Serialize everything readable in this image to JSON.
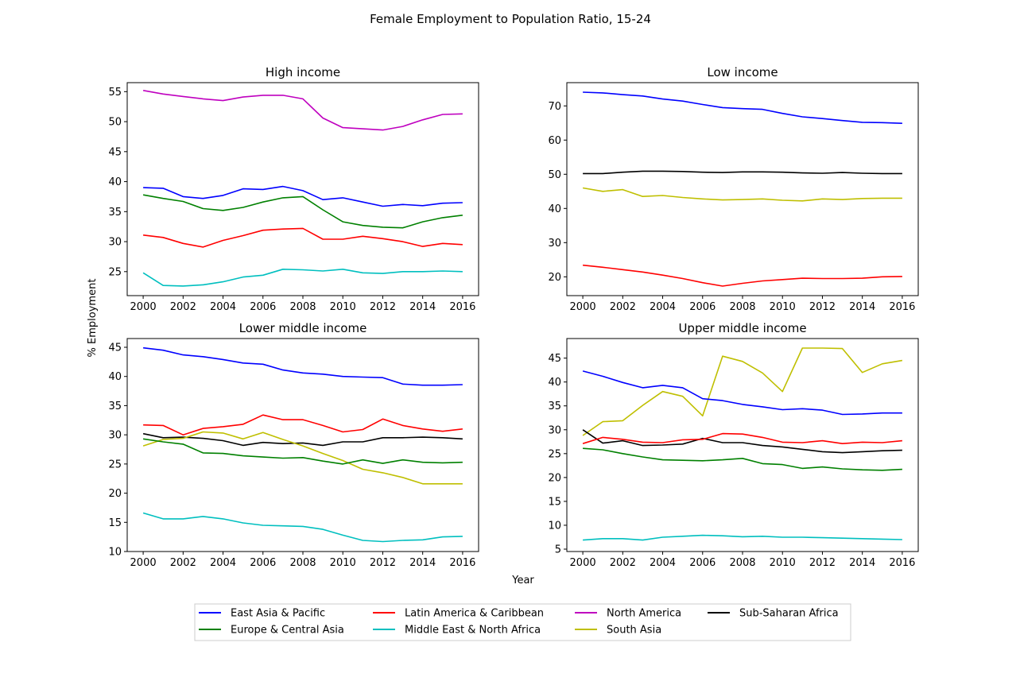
{
  "figure": {
    "title": "Female Employment to Population Ratio, 15-24",
    "ylabel": "% Employment",
    "xlabel": "Year"
  },
  "colors": {
    "East Asia & Pacific": "#0000ff",
    "Europe & Central Asia": "#008000",
    "Latin America & Caribbean": "#ff0000",
    "Middle East & North Africa": "#00bfbf",
    "North America": "#bf00bf",
    "South Asia": "#bfbf00",
    "Sub-Saharan Africa": "#000000"
  },
  "legend": {
    "placement": "bottom-center",
    "entries": [
      "East Asia & Pacific",
      "Latin America & Caribbean",
      "North America",
      "Sub-Saharan Africa",
      "Europe & Central Asia",
      "Middle East & North Africa",
      "South Asia"
    ]
  },
  "chart_data": [
    {
      "type": "line",
      "title": "High income",
      "x": [
        2000,
        2001,
        2002,
        2003,
        2004,
        2005,
        2006,
        2007,
        2008,
        2009,
        2010,
        2011,
        2012,
        2013,
        2014,
        2015,
        2016
      ],
      "xticks": [
        2000,
        2002,
        2004,
        2006,
        2008,
        2010,
        2012,
        2014,
        2016
      ],
      "ylim": [
        21,
        56.5
      ],
      "yticks": [
        25,
        30,
        35,
        40,
        45,
        50,
        55
      ],
      "series": [
        {
          "name": "North America",
          "values": [
            55.2,
            54.6,
            54.2,
            53.8,
            53.5,
            54.1,
            54.4,
            54.4,
            53.8,
            50.6,
            49.0,
            48.8,
            48.6,
            49.2,
            50.3,
            51.2,
            51.3
          ]
        },
        {
          "name": "East Asia & Pacific",
          "values": [
            39.0,
            38.9,
            37.5,
            37.2,
            37.7,
            38.8,
            38.7,
            39.2,
            38.5,
            37.0,
            37.3,
            36.6,
            35.9,
            36.2,
            36.0,
            36.4,
            36.5
          ]
        },
        {
          "name": "Europe & Central Asia",
          "values": [
            37.8,
            37.2,
            36.7,
            35.5,
            35.2,
            35.7,
            36.6,
            37.3,
            37.5,
            35.3,
            33.3,
            32.7,
            32.4,
            32.3,
            33.3,
            34.0,
            34.4
          ]
        },
        {
          "name": "Latin America & Caribbean",
          "values": [
            31.1,
            30.7,
            29.7,
            29.1,
            30.2,
            31.0,
            31.9,
            32.1,
            32.2,
            30.4,
            30.4,
            30.9,
            30.5,
            30.0,
            29.2,
            29.7,
            29.5
          ]
        },
        {
          "name": "Middle East & North Africa",
          "values": [
            24.8,
            22.7,
            22.6,
            22.8,
            23.3,
            24.1,
            24.4,
            25.4,
            25.3,
            25.1,
            25.4,
            24.8,
            24.7,
            25.0,
            25.0,
            25.1,
            25.0
          ]
        }
      ]
    },
    {
      "type": "line",
      "title": "Low income",
      "x": [
        2000,
        2001,
        2002,
        2003,
        2004,
        2005,
        2006,
        2007,
        2008,
        2009,
        2010,
        2011,
        2012,
        2013,
        2014,
        2015,
        2016
      ],
      "xticks": [
        2000,
        2002,
        2004,
        2006,
        2008,
        2010,
        2012,
        2014,
        2016
      ],
      "ylim": [
        14.5,
        76.8
      ],
      "yticks": [
        20,
        30,
        40,
        50,
        60,
        70
      ],
      "series": [
        {
          "name": "East Asia & Pacific",
          "values": [
            74.0,
            73.8,
            73.3,
            72.9,
            72.0,
            71.4,
            70.4,
            69.5,
            69.2,
            69.0,
            67.8,
            66.8,
            66.3,
            65.7,
            65.2,
            65.1,
            64.9
          ]
        },
        {
          "name": "Sub-Saharan Africa",
          "values": [
            50.2,
            50.2,
            50.6,
            50.9,
            50.9,
            50.8,
            50.6,
            50.5,
            50.7,
            50.7,
            50.6,
            50.4,
            50.3,
            50.5,
            50.3,
            50.2,
            50.2
          ]
        },
        {
          "name": "South Asia",
          "values": [
            46.0,
            45.0,
            45.5,
            43.5,
            43.8,
            43.2,
            42.8,
            42.5,
            42.6,
            42.8,
            42.4,
            42.2,
            42.8,
            42.6,
            42.9,
            43.0,
            43.0
          ]
        },
        {
          "name": "Latin America & Caribbean",
          "values": [
            23.4,
            22.8,
            22.1,
            21.4,
            20.5,
            19.5,
            18.3,
            17.3,
            18.1,
            18.8,
            19.2,
            19.6,
            19.5,
            19.5,
            19.6,
            20.0,
            20.1
          ]
        }
      ]
    },
    {
      "type": "line",
      "title": "Lower middle income",
      "x": [
        2000,
        2001,
        2002,
        2003,
        2004,
        2005,
        2006,
        2007,
        2008,
        2009,
        2010,
        2011,
        2012,
        2013,
        2014,
        2015,
        2016
      ],
      "xticks": [
        2000,
        2002,
        2004,
        2006,
        2008,
        2010,
        2012,
        2014,
        2016
      ],
      "ylim": [
        10,
        46.5
      ],
      "yticks": [
        10,
        15,
        20,
        25,
        30,
        35,
        40,
        45
      ],
      "series": [
        {
          "name": "East Asia & Pacific",
          "values": [
            44.9,
            44.5,
            43.7,
            43.4,
            42.9,
            42.3,
            42.1,
            41.1,
            40.6,
            40.4,
            40.0,
            39.9,
            39.8,
            38.7,
            38.5,
            38.5,
            38.6
          ]
        },
        {
          "name": "Latin America & Caribbean",
          "values": [
            31.7,
            31.6,
            30.0,
            31.1,
            31.4,
            31.8,
            33.4,
            32.6,
            32.6,
            31.6,
            30.5,
            30.9,
            32.7,
            31.6,
            31.0,
            30.6,
            31.0
          ]
        },
        {
          "name": "Sub-Saharan Africa",
          "values": [
            30.2,
            29.5,
            29.6,
            29.4,
            29.0,
            28.2,
            28.7,
            28.5,
            28.6,
            28.2,
            28.8,
            28.8,
            29.5,
            29.5,
            29.6,
            29.5,
            29.3
          ]
        },
        {
          "name": "South Asia",
          "values": [
            28.1,
            29.2,
            29.4,
            30.5,
            30.3,
            29.3,
            30.4,
            29.2,
            28.1,
            26.8,
            25.6,
            24.1,
            23.5,
            22.7,
            21.6,
            21.6,
            21.6
          ]
        },
        {
          "name": "Europe & Central Asia",
          "values": [
            29.3,
            28.8,
            28.4,
            26.9,
            26.8,
            26.4,
            26.2,
            26.0,
            26.1,
            25.5,
            25.0,
            25.7,
            25.1,
            25.7,
            25.3,
            25.2,
            25.3
          ]
        },
        {
          "name": "Middle East & North Africa",
          "values": [
            16.6,
            15.6,
            15.6,
            16.0,
            15.6,
            14.9,
            14.5,
            14.4,
            14.3,
            13.8,
            12.8,
            11.9,
            11.7,
            11.9,
            12.0,
            12.5,
            12.6
          ]
        }
      ]
    },
    {
      "type": "line",
      "title": "Upper middle income",
      "x": [
        2000,
        2001,
        2002,
        2003,
        2004,
        2005,
        2006,
        2007,
        2008,
        2009,
        2010,
        2011,
        2012,
        2013,
        2014,
        2015,
        2016
      ],
      "xticks": [
        2000,
        2002,
        2004,
        2006,
        2008,
        2010,
        2012,
        2014,
        2016
      ],
      "ylim": [
        4.5,
        49.1
      ],
      "yticks": [
        5,
        10,
        15,
        20,
        25,
        30,
        35,
        40,
        45
      ],
      "series": [
        {
          "name": "South Asia",
          "values": [
            28.8,
            31.7,
            31.9,
            35.1,
            38.0,
            37.0,
            32.9,
            45.4,
            44.3,
            41.9,
            38.0,
            47.1,
            47.1,
            47.0,
            42.0,
            43.8,
            44.5
          ]
        },
        {
          "name": "East Asia & Pacific",
          "values": [
            42.3,
            41.2,
            39.9,
            38.8,
            39.3,
            38.8,
            36.5,
            36.1,
            35.3,
            34.8,
            34.2,
            34.4,
            34.1,
            33.2,
            33.3,
            33.5,
            33.5
          ]
        },
        {
          "name": "Sub-Saharan Africa",
          "values": [
            30.0,
            27.2,
            27.7,
            26.7,
            26.8,
            27.0,
            28.2,
            27.3,
            27.3,
            26.7,
            26.4,
            25.9,
            25.4,
            25.2,
            25.4,
            25.6,
            25.7
          ]
        },
        {
          "name": "Latin America & Caribbean",
          "values": [
            27.1,
            28.4,
            28.0,
            27.4,
            27.3,
            27.9,
            28.0,
            29.2,
            29.1,
            28.4,
            27.4,
            27.3,
            27.7,
            27.1,
            27.4,
            27.3,
            27.7
          ]
        },
        {
          "name": "Europe & Central Asia",
          "values": [
            26.1,
            25.8,
            25.0,
            24.3,
            23.7,
            23.6,
            23.5,
            23.7,
            24.0,
            22.9,
            22.7,
            21.9,
            22.2,
            21.8,
            21.6,
            21.5,
            21.7
          ]
        },
        {
          "name": "Middle East & North Africa",
          "values": [
            6.9,
            7.2,
            7.2,
            6.9,
            7.5,
            7.7,
            7.9,
            7.8,
            7.6,
            7.7,
            7.5,
            7.5,
            7.4,
            7.3,
            7.2,
            7.1,
            7.0
          ]
        }
      ]
    }
  ]
}
